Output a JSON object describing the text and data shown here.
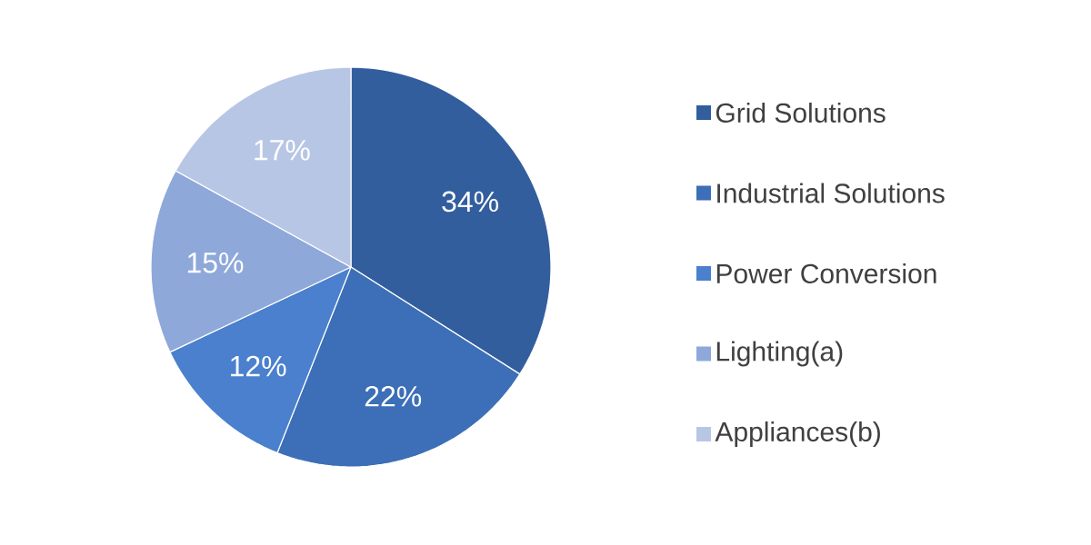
{
  "chart_data": {
    "type": "pie",
    "categories": [
      "Grid Solutions",
      "Industrial Solutions",
      "Power Conversion",
      "Lighting(a)",
      "Appliances(b)"
    ],
    "values": [
      34,
      22,
      12,
      15,
      17
    ],
    "value_labels": [
      "34%",
      "22%",
      "12%",
      "15%",
      "17%"
    ],
    "colors": [
      "#335e9e",
      "#3c6fb7",
      "#4a80cd",
      "#8ea8da",
      "#b8c6e5"
    ],
    "legend": "right"
  }
}
